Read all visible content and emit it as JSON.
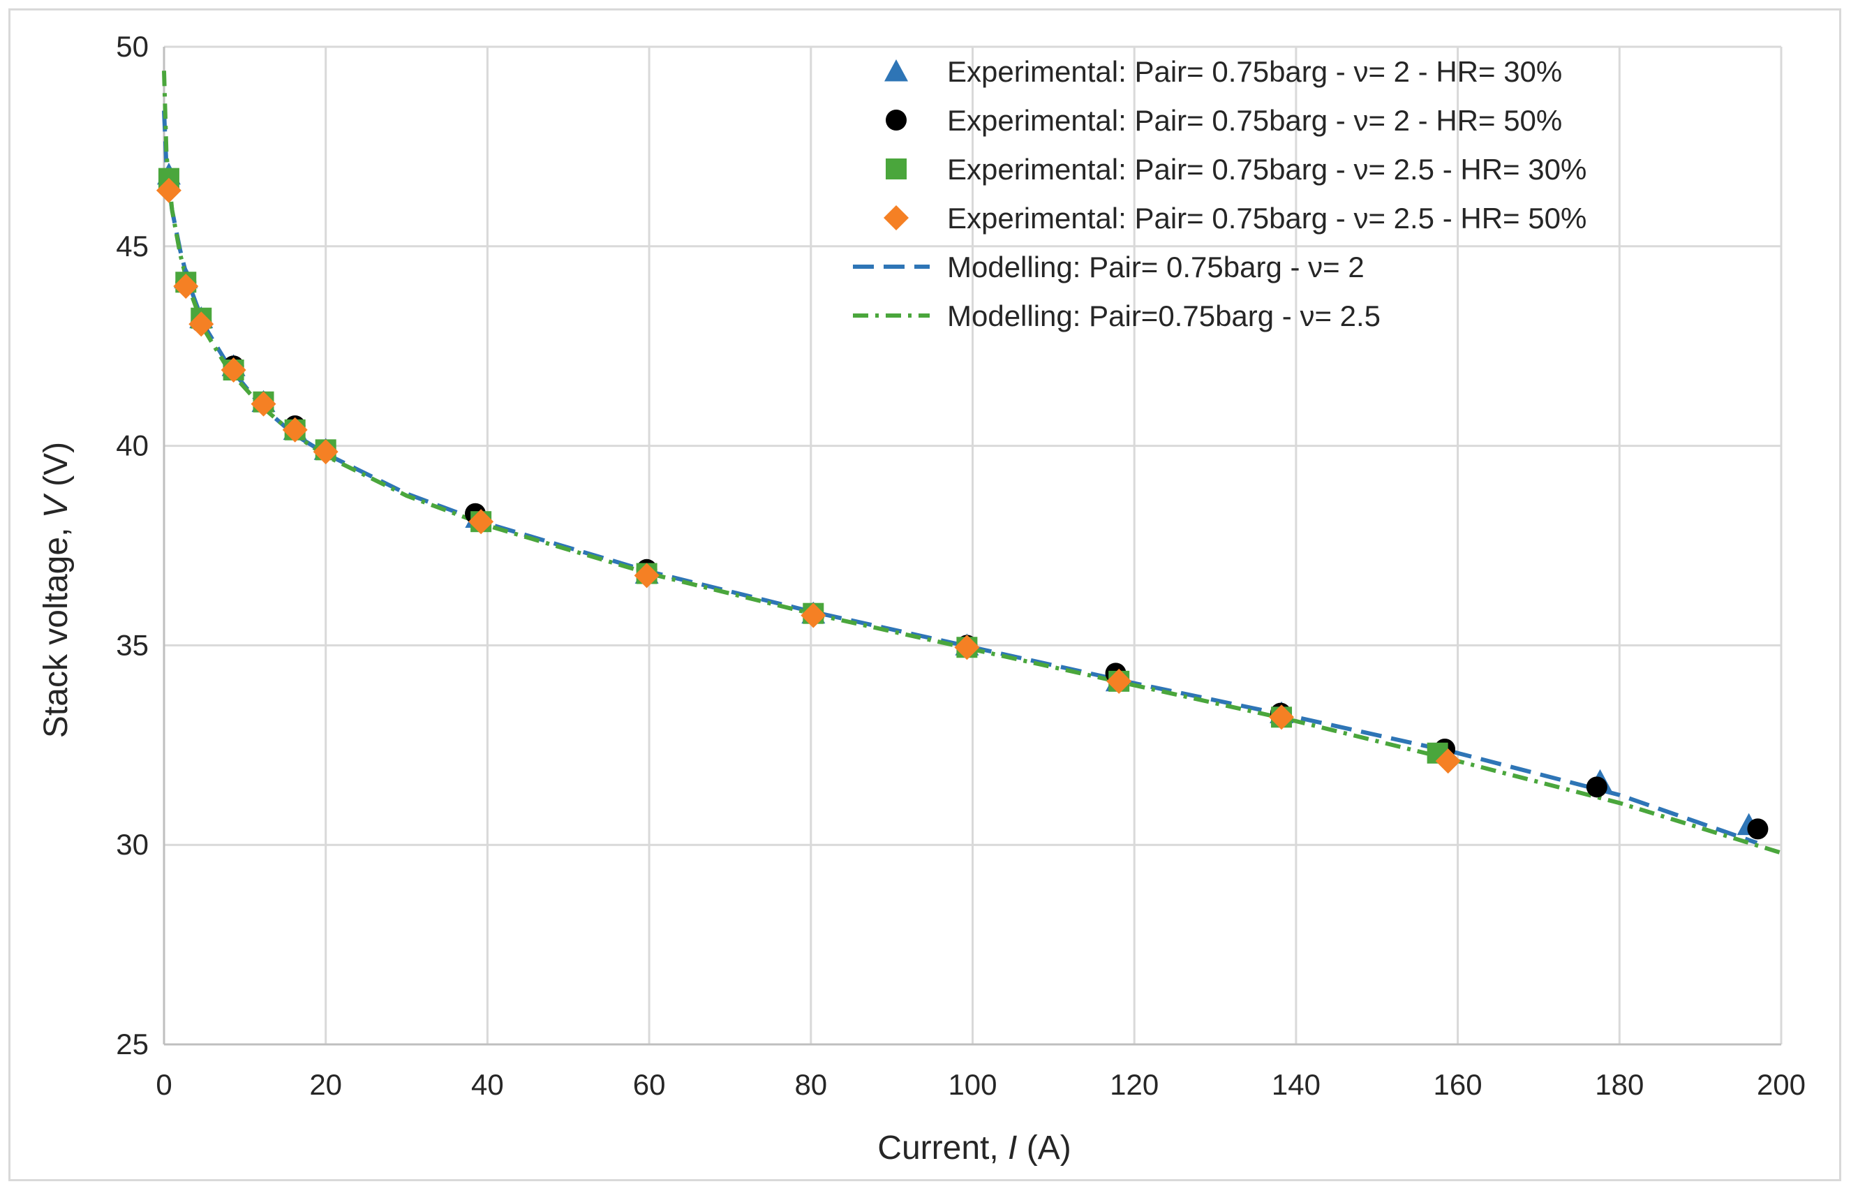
{
  "chart_data": {
    "type": "scatter",
    "title": "",
    "xlabel_prefix": "Current, ",
    "xlabel_var": "I",
    "xlabel_unit": " (A)",
    "ylabel_prefix": "Stack voltage, ",
    "ylabel_var": "V",
    "ylabel_unit": " (V)",
    "xlim": [
      0,
      200
    ],
    "ylim": [
      25,
      50
    ],
    "xticks": [
      0,
      20,
      40,
      60,
      80,
      100,
      120,
      140,
      160,
      180,
      200
    ],
    "yticks": [
      25,
      30,
      35,
      40,
      45,
      50
    ],
    "grid": true,
    "legend_position": "top-right",
    "series": [
      {
        "name": "Experimental: Pair= 0.75barg - ν= 2 - HR= 30%",
        "kind": "marker",
        "marker": "triangle",
        "color": "#2e75b6",
        "x": [
          0.6,
          2.7,
          4.6,
          8.6,
          12.3,
          16.2,
          20.0,
          38.7,
          59.7,
          80.3,
          99.3,
          117.9,
          138.2,
          158.4,
          177.6,
          196.0
        ],
        "y": [
          46.8,
          44.2,
          43.2,
          42.0,
          41.1,
          40.4,
          39.9,
          38.2,
          36.8,
          35.8,
          35.0,
          34.1,
          33.3,
          32.3,
          31.6,
          30.5
        ]
      },
      {
        "name": "Experimental: Pair= 0.75barg - ν= 2 - HR= 50%",
        "kind": "marker",
        "marker": "circle",
        "color": "#000000",
        "x": [
          0.6,
          2.7,
          4.6,
          8.6,
          12.3,
          16.2,
          20.0,
          38.5,
          59.7,
          80.3,
          99.3,
          117.7,
          138.1,
          158.4,
          177.2,
          197.1
        ],
        "y": [
          46.6,
          44.1,
          43.1,
          42.0,
          41.1,
          40.5,
          39.9,
          38.3,
          36.9,
          35.8,
          35.0,
          34.3,
          33.3,
          32.4,
          31.45,
          30.4
        ]
      },
      {
        "name": "Experimental: Pair= 0.75barg - ν= 2.5 - HR= 30%",
        "kind": "marker",
        "marker": "square",
        "color": "#4aa63c",
        "x": [
          0.6,
          2.7,
          4.6,
          8.6,
          12.3,
          16.2,
          20.0,
          39.2,
          59.7,
          80.3,
          99.3,
          118.1,
          138.2,
          157.5
        ],
        "y": [
          46.7,
          44.1,
          43.2,
          41.9,
          41.1,
          40.4,
          39.9,
          38.1,
          36.8,
          35.8,
          34.95,
          34.1,
          33.2,
          32.3
        ]
      },
      {
        "name": "Experimental: Pair= 0.75barg - ν= 2.5 - HR= 50%",
        "kind": "marker",
        "marker": "diamond",
        "color": "#f58024",
        "x": [
          0.6,
          2.7,
          4.6,
          8.6,
          12.3,
          16.2,
          20.0,
          39.2,
          59.7,
          80.3,
          99.3,
          118.1,
          138.2,
          158.8
        ],
        "y": [
          46.4,
          44.0,
          43.05,
          41.9,
          41.05,
          40.4,
          39.85,
          38.1,
          36.75,
          35.75,
          34.95,
          34.1,
          33.2,
          32.1
        ]
      },
      {
        "name": "Modelling: Pair= 0.75barg - ν= 2",
        "kind": "line",
        "style": "dash",
        "color": "#2e75b6",
        "x": [
          0,
          0.3,
          1,
          2,
          3,
          5,
          8,
          12,
          16,
          20,
          30,
          40,
          60,
          80,
          100,
          120,
          140,
          160,
          180,
          197
        ],
        "y": [
          48.4,
          47.0,
          45.9,
          44.9,
          44.1,
          43.0,
          42.0,
          41.0,
          40.3,
          39.8,
          38.8,
          38.05,
          36.85,
          35.85,
          34.95,
          34.05,
          33.2,
          32.3,
          31.25,
          30.05
        ]
      },
      {
        "name": "Modelling: Pair=0.75barg - ν= 2.5",
        "kind": "line",
        "style": "dashdot",
        "color": "#4aa63c",
        "x": [
          0,
          0.3,
          1,
          2,
          3,
          5,
          8,
          12,
          16,
          20,
          30,
          40,
          60,
          80,
          100,
          120,
          140,
          160,
          180,
          200
        ],
        "y": [
          49.4,
          47.3,
          45.9,
          44.8,
          44.0,
          42.9,
          41.9,
          41.0,
          40.3,
          39.75,
          38.75,
          38.0,
          36.8,
          35.8,
          34.9,
          34.0,
          33.1,
          32.1,
          31.05,
          29.8
        ]
      }
    ]
  }
}
